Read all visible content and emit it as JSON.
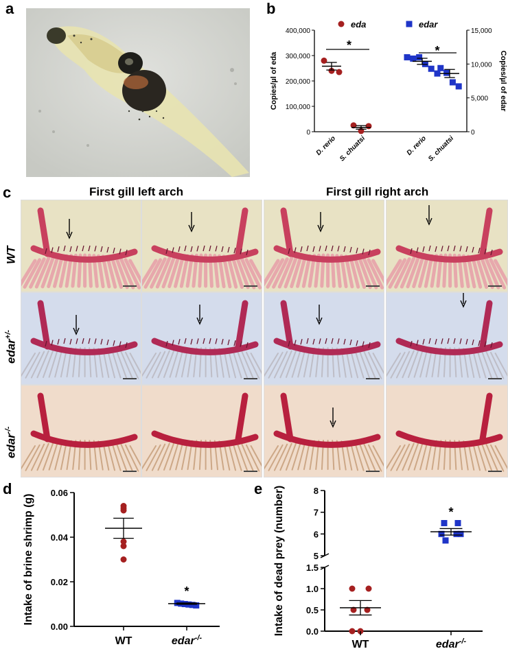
{
  "panels": {
    "a": {
      "label": "a"
    },
    "b": {
      "label": "b"
    },
    "c": {
      "label": "c"
    },
    "d": {
      "label": "d"
    },
    "e": {
      "label": "e"
    }
  },
  "panel_c": {
    "col_titles": [
      "First gill left arch",
      "First gill  right arch"
    ],
    "row_labels": [
      {
        "base": "WT",
        "sup": ""
      },
      {
        "base": "edar",
        "sup": "+/-"
      },
      {
        "base": "edar",
        "sup": "-/-"
      }
    ],
    "row_backgrounds": [
      "#e8e2c4",
      "#d4dcec",
      "#f0dccb"
    ],
    "row_arch_colors": [
      "#c8405e",
      "#b02a55",
      "#b8203e"
    ]
  },
  "chart_data": [
    {
      "id": "b",
      "type": "scatter",
      "title": "",
      "legend": [
        {
          "name": "eda",
          "color": "#a52020",
          "marker": "circle"
        },
        {
          "name": "edar",
          "color": "#1f35c8",
          "marker": "square"
        }
      ],
      "ylabel_left": "Copies/µl of eda",
      "ylabel_right": "Copies/µl of edar",
      "ylim_left": [
        0,
        400000
      ],
      "yticks_left": [
        "0",
        "100,000",
        "200,000",
        "300,000",
        "400,000"
      ],
      "ylim_right": [
        0,
        15000
      ],
      "yticks_right": [
        "0",
        "5,000",
        "10,000",
        "15,000"
      ],
      "categories": [
        "D. rerio",
        "S. chuatsi",
        "D. rerio",
        "S. chuatsi"
      ],
      "series": [
        {
          "name": "eda",
          "axis": "left",
          "groups": [
            {
              "category": "D. rerio",
              "points": [
                280000,
                240000,
                235000
              ],
              "mean": 258000,
              "sem": 15000
            },
            {
              "category": "S. chuatsi",
              "points": [
                25000,
                3000,
                22000
              ],
              "mean": 17000,
              "sem": 7000
            }
          ]
        },
        {
          "name": "edar",
          "axis": "right",
          "groups": [
            {
              "category": "D. rerio",
              "points": [
                11000,
                10800,
                11000,
                10000,
                9300,
                8600
              ],
              "mean": 10400,
              "sem": 450
            },
            {
              "category": "S. chuatsi",
              "points": [
                9400,
                8700,
                7300,
                6700
              ],
              "mean": 8600,
              "sem": 600
            }
          ]
        }
      ],
      "significance": [
        "*",
        "*"
      ]
    },
    {
      "id": "d",
      "type": "scatter",
      "ylabel": "Intake of brine shrimp (g)",
      "ylim": [
        0,
        0.06
      ],
      "yticks": [
        "0.00",
        "0.02",
        "0.04",
        "0.06"
      ],
      "categories": [
        "WT",
        "edar-/-"
      ],
      "groups": [
        {
          "category": "WT",
          "color": "#a52020",
          "marker": "circle",
          "points": [
            0.054,
            0.053,
            0.052,
            0.038,
            0.036,
            0.03
          ],
          "mean": 0.044,
          "sem": 0.0045
        },
        {
          "category": "edar-/-",
          "color": "#1f35c8",
          "marker": "square",
          "points": [
            0.0105,
            0.0102,
            0.01,
            0.0098,
            0.0096,
            0.0094
          ],
          "mean": 0.0102,
          "sem": 0.0003
        }
      ],
      "significance": "*"
    },
    {
      "id": "e",
      "type": "scatter",
      "ylabel": "Intake of dead prey (number)",
      "broken_axis": true,
      "ylim_upper": [
        5,
        8
      ],
      "yticks_upper": [
        "5",
        "6",
        "7",
        "8"
      ],
      "ylim_lower": [
        0,
        1.5
      ],
      "yticks_lower": [
        "0.0",
        "0.5",
        "1.0",
        "1.5"
      ],
      "categories": [
        "WT",
        "edar-/-"
      ],
      "groups": [
        {
          "category": "WT",
          "color": "#a52020",
          "marker": "circle",
          "points": [
            1,
            1,
            0.5,
            0.5,
            0,
            0
          ],
          "mean": 0.55,
          "sem": 0.17
        },
        {
          "category": "edar-/-",
          "color": "#1f35c8",
          "marker": "square",
          "points": [
            6.5,
            6.5,
            6.0,
            6.0,
            5.7,
            6.0
          ],
          "mean": 6.1,
          "sem": 0.15
        }
      ],
      "significance": "*"
    }
  ]
}
